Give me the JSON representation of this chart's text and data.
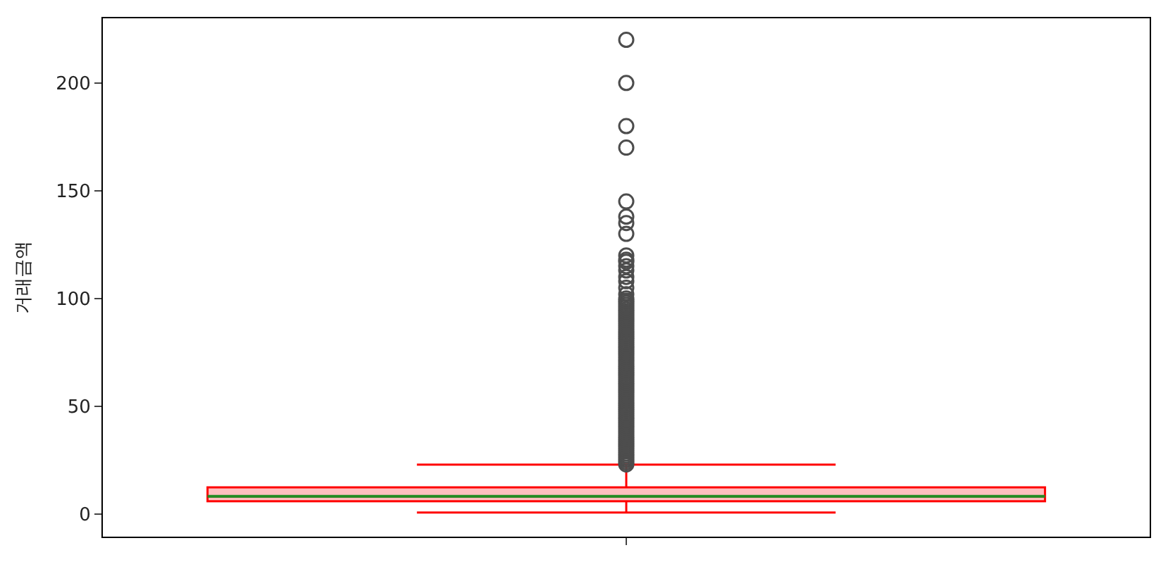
{
  "chart_data": {
    "type": "box",
    "ylabel": "거래금액",
    "categories": [
      null
    ],
    "series": [
      {
        "color": "#ff0000",
        "boxes": [
          {
            "low": 0.7,
            "q1": 5.9,
            "median": 8.2,
            "q3": 12.4,
            "high": 22.9,
            "outliers": [
              23,
              24,
              25,
              26,
              27,
              28,
              29,
              30,
              31,
              32,
              33,
              34,
              35,
              36,
              37,
              38,
              39,
              40,
              41,
              42,
              43,
              44,
              45,
              46,
              47,
              48,
              49,
              50,
              51,
              52,
              53,
              54,
              55,
              56,
              57,
              58,
              59,
              60,
              61,
              62,
              63,
              64,
              65,
              66,
              67,
              68,
              69,
              70,
              71,
              72,
              73,
              74,
              75,
              76,
              77,
              78,
              79,
              80,
              81,
              82,
              83,
              84,
              85,
              86,
              87,
              88,
              89,
              90,
              91,
              92,
              93,
              94,
              95,
              96,
              97,
              98,
              99,
              100,
              102,
              105,
              108,
              110,
              113,
              115,
              117,
              118,
              120,
              130,
              135,
              138,
              145,
              170,
              180,
              200,
              220
            ]
          }
        ]
      }
    ],
    "ylim": [
      -10.5,
      230
    ],
    "yticks": [
      0,
      50,
      100,
      150,
      200
    ]
  }
}
